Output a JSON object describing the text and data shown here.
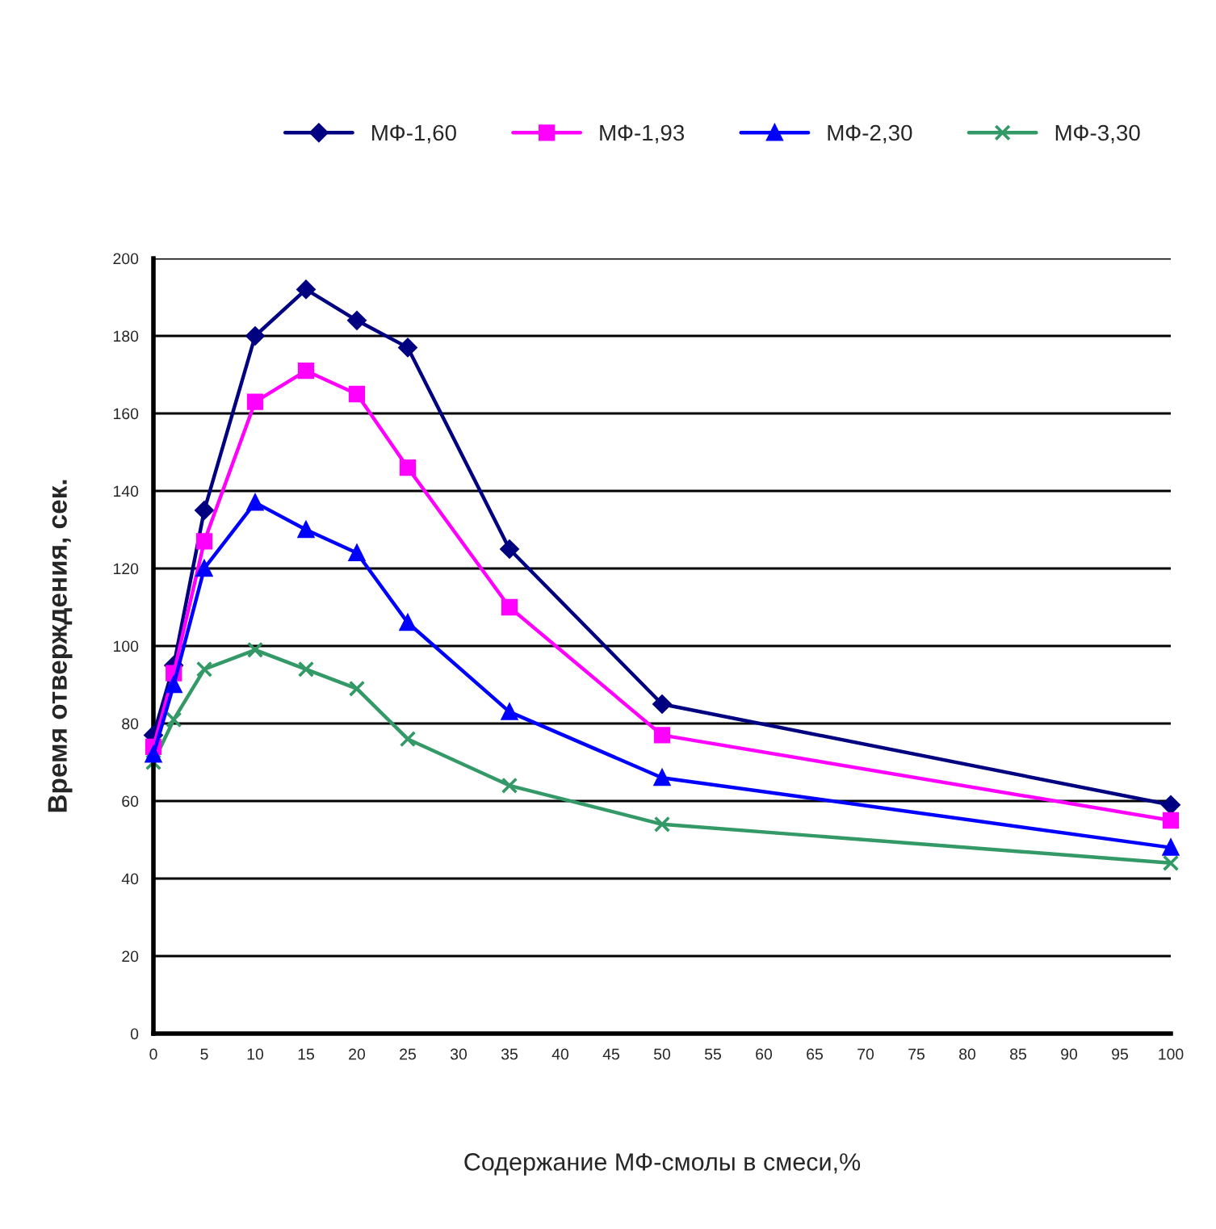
{
  "chart_data": {
    "type": "line",
    "xlabel": "Содержание МФ-смолы в смеси,%",
    "ylabel": "Время отверждения, сек.",
    "x": [
      0,
      2,
      5,
      10,
      15,
      20,
      25,
      35,
      50,
      100
    ],
    "series": [
      {
        "name": "МФ-1,60",
        "color": "#000080",
        "marker": "diamond",
        "values": [
          77,
          95,
          135,
          180,
          192,
          184,
          177,
          125,
          85,
          59
        ]
      },
      {
        "name": "МФ-1,93",
        "color": "#ff00ff",
        "marker": "square",
        "values": [
          74,
          93,
          127,
          163,
          171,
          165,
          146,
          110,
          77,
          55
        ]
      },
      {
        "name": "МФ-2,30",
        "color": "#0000ff",
        "marker": "triangle",
        "values": [
          72,
          90,
          120,
          137,
          130,
          124,
          106,
          83,
          66,
          48
        ]
      },
      {
        "name": "МФ-3,30",
        "color": "#339966",
        "marker": "cross",
        "values": [
          70,
          81,
          94,
          99,
          94,
          89,
          76,
          64,
          54,
          44
        ]
      }
    ],
    "xlim": [
      0,
      100
    ],
    "xticks": [
      0,
      5,
      10,
      15,
      20,
      25,
      30,
      35,
      40,
      45,
      50,
      55,
      60,
      65,
      70,
      75,
      80,
      85,
      90,
      95,
      100
    ],
    "ylim": [
      0,
      200
    ],
    "yticks": [
      0,
      20,
      40,
      60,
      80,
      100,
      120,
      140,
      160,
      180,
      200
    ],
    "grid": "y",
    "legend": "top",
    "line_style": "solid"
  }
}
